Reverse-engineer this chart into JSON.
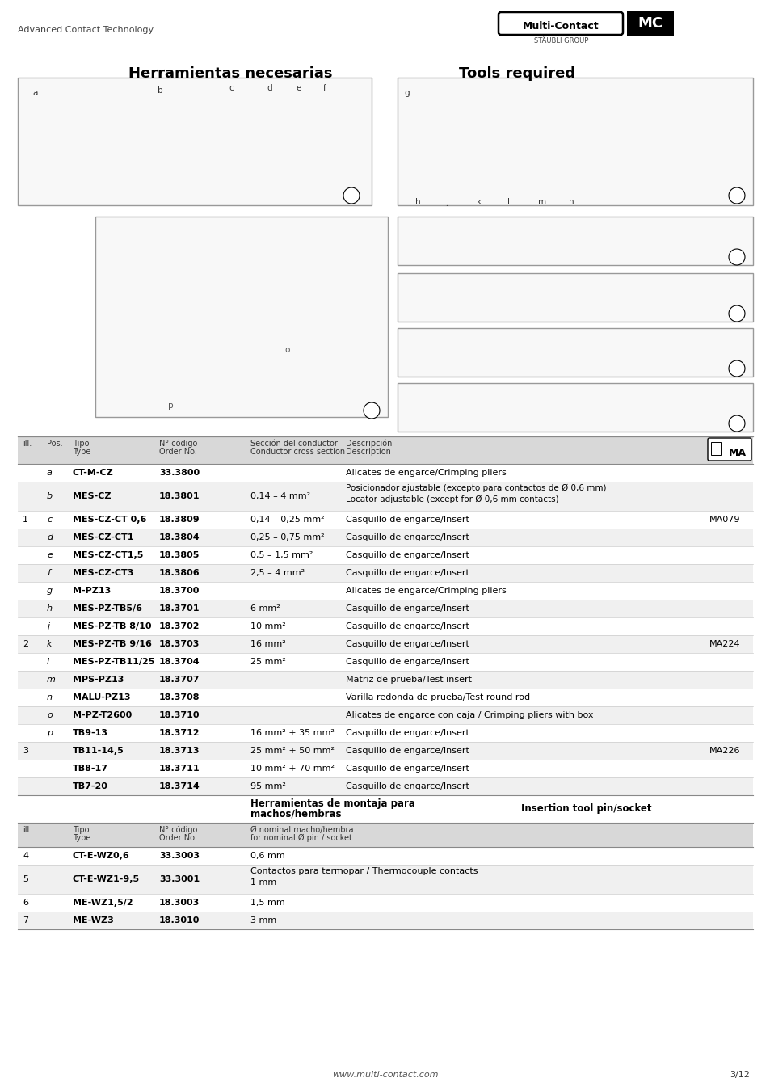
{
  "header_left": "Advanced Contact Technology",
  "header_brand": "Multi-Contact",
  "header_group": "STÄUBLI GROUP",
  "title_es": "Herramientas necesarias",
  "title_en": "Tools required",
  "rows1": [
    [
      "",
      "a",
      "CT-M-CZ",
      "33.3800",
      "",
      "Alicates de engarce/Crimping pliers",
      ""
    ],
    [
      "",
      "b",
      "MES-CZ",
      "18.3801",
      "0,14 – 4 mm²",
      "Posicionador ajustable (excepto para contactos de Ø 0,6 mm)\nLocator adjustable (except for Ø 0,6 mm contacts)",
      ""
    ],
    [
      "1",
      "c",
      "MES-CZ-CT 0,6",
      "18.3809",
      "0,14 – 0,25 mm²",
      "Casquillo de engarce/Insert",
      "MA079"
    ],
    [
      "",
      "d",
      "MES-CZ-CT1",
      "18.3804",
      "0,25 – 0,75 mm²",
      "Casquillo de engarce/Insert",
      ""
    ],
    [
      "",
      "e",
      "MES-CZ-CT1,5",
      "18.3805",
      "0,5 – 1,5 mm²",
      "Casquillo de engarce/Insert",
      ""
    ],
    [
      "",
      "f",
      "MES-CZ-CT3",
      "18.3806",
      "2,5 – 4 mm²",
      "Casquillo de engarce/Insert",
      ""
    ],
    [
      "",
      "g",
      "M-PZ13",
      "18.3700",
      "",
      "Alicates de engarce/Crimping pliers",
      ""
    ],
    [
      "",
      "h",
      "MES-PZ-TB5/6",
      "18.3701",
      "6 mm²",
      "Casquillo de engarce/Insert",
      ""
    ],
    [
      "",
      "j",
      "MES-PZ-TB 8/10",
      "18.3702",
      "10 mm²",
      "Casquillo de engarce/Insert",
      ""
    ],
    [
      "2",
      "k",
      "MES-PZ-TB 9/16",
      "18.3703",
      "16 mm²",
      "Casquillo de engarce/Insert",
      "MA224"
    ],
    [
      "",
      "l",
      "MES-PZ-TB11/25",
      "18.3704",
      "25 mm²",
      "Casquillo de engarce/Insert",
      ""
    ],
    [
      "",
      "m",
      "MPS-PZ13",
      "18.3707",
      "",
      "Matriz de prueba/Test insert",
      ""
    ],
    [
      "",
      "n",
      "MALU-PZ13",
      "18.3708",
      "",
      "Varilla redonda de prueba/Test round rod",
      ""
    ],
    [
      "",
      "o",
      "M-PZ-T2600",
      "18.3710",
      "",
      "Alicates de engarce con caja / Crimping pliers with box",
      ""
    ],
    [
      "",
      "p",
      "TB9-13",
      "18.3712",
      "16 mm² + 35 mm²",
      "Casquillo de engarce/Insert",
      ""
    ],
    [
      "3",
      "",
      "TB11-14,5",
      "18.3713",
      "25 mm² + 50 mm²",
      "Casquillo de engarce/Insert",
      "MA226"
    ],
    [
      "",
      "",
      "TB8-17",
      "18.3711",
      "10 mm² + 70 mm²",
      "Casquillo de engarce/Insert",
      ""
    ],
    [
      "",
      "",
      "TB7-20",
      "18.3714",
      "95 mm²",
      "Casquillo de engarce/Insert",
      ""
    ]
  ],
  "mid_header_es1": "Herramientas de montaja para",
  "mid_header_es2": "machos/hembras",
  "mid_header_en": "Insertion tool pin/socket",
  "rows2": [
    [
      "4",
      "CT-E-WZ0,6",
      "33.3003",
      "0,6 mm"
    ],
    [
      "5",
      "CT-E-WZ1-9,5",
      "33.3001",
      "Contactos para termopar / Thermocouple contacts\n1 mm"
    ],
    [
      "6",
      "ME-WZ1,5/2",
      "18.3003",
      "1,5 mm"
    ],
    [
      "7",
      "ME-WZ3",
      "18.3010",
      "3 mm"
    ]
  ],
  "footer_url": "www.multi-contact.com",
  "footer_page": "3/12",
  "bg_color": "#ffffff",
  "table_header_bg": "#d8d8d8",
  "row_alt_bg": "#f0f0f0",
  "border_dark": "#888888",
  "border_light": "#cccccc",
  "text_dark": "#000000",
  "text_gray": "#555555",
  "img_box_bg": "#f8f8f8",
  "img_box_border": "#999999"
}
